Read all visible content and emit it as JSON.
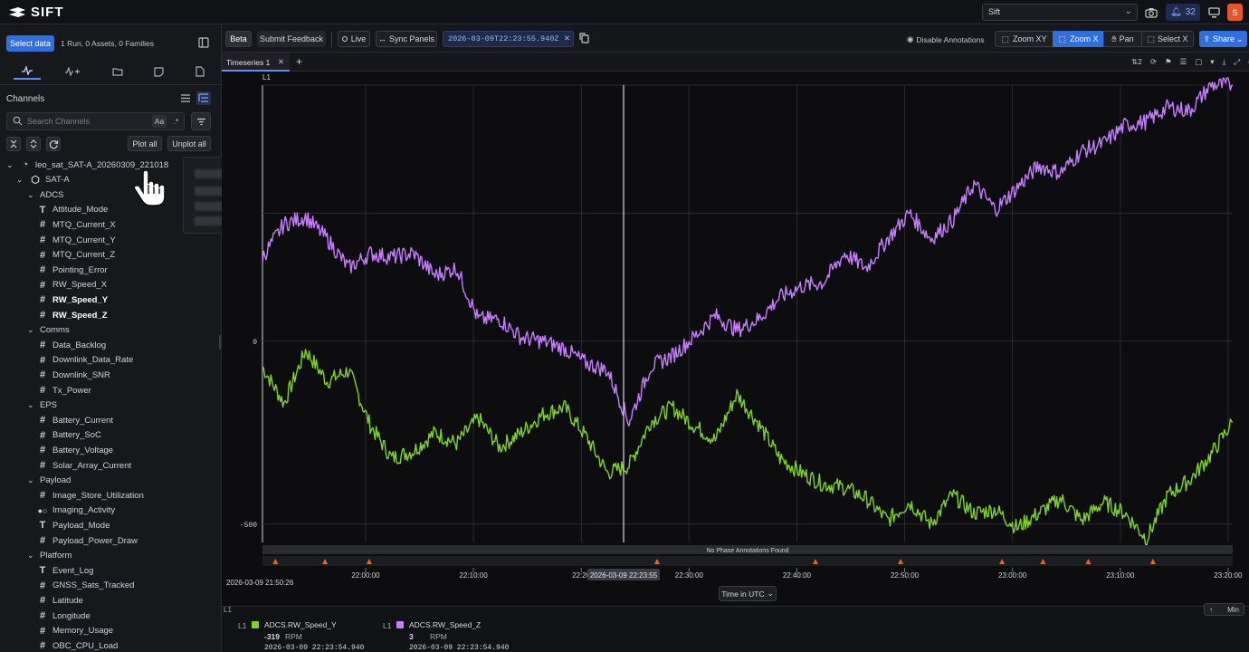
{
  "app": {
    "logo_text": "SIFT",
    "org": "Sift",
    "notifications": "32",
    "avatar": "S"
  },
  "sidebar": {
    "select_data": "Select data",
    "selection_summary": "1 Run, 0 Assets, 0 Families",
    "channels_title": "Channels",
    "search_placeholder": "Search Channels",
    "case_toggle": "Aa",
    "regex_toggle": ".*",
    "plot_all": "Plot all",
    "unplot_all": "Unplot all",
    "run_name": "leo_sat_SAT-A_20260309_221018",
    "asset_name": "SAT-A",
    "groups": [
      {
        "name": "ADCS",
        "channels": [
          {
            "name": "Attitude_Mode",
            "type": "text"
          },
          {
            "name": "MTQ_Current_X",
            "type": "number"
          },
          {
            "name": "MTQ_Current_Y",
            "type": "number"
          },
          {
            "name": "MTQ_Current_Z",
            "type": "number"
          },
          {
            "name": "Pointing_Error",
            "type": "number"
          },
          {
            "name": "RW_Speed_X",
            "type": "number"
          },
          {
            "name": "RW_Speed_Y",
            "type": "number",
            "plotted": true
          },
          {
            "name": "RW_Speed_Z",
            "type": "number",
            "plotted": true
          }
        ]
      },
      {
        "name": "Comms",
        "channels": [
          {
            "name": "Data_Backlog",
            "type": "number"
          },
          {
            "name": "Downlink_Data_Rate",
            "type": "number"
          },
          {
            "name": "Downlink_SNR",
            "type": "number"
          },
          {
            "name": "Tx_Power",
            "type": "number"
          }
        ]
      },
      {
        "name": "EPS",
        "channels": [
          {
            "name": "Battery_Current",
            "type": "number"
          },
          {
            "name": "Battery_SoC",
            "type": "number"
          },
          {
            "name": "Battery_Voltage",
            "type": "number"
          },
          {
            "name": "Solar_Array_Current",
            "type": "number"
          }
        ]
      },
      {
        "name": "Payload",
        "channels": [
          {
            "name": "Image_Store_Utilization",
            "type": "number"
          },
          {
            "name": "Imaging_Activity",
            "type": "bool"
          },
          {
            "name": "Payload_Mode",
            "type": "text"
          },
          {
            "name": "Payload_Power_Draw",
            "type": "number"
          }
        ]
      },
      {
        "name": "Platform",
        "channels": [
          {
            "name": "Event_Log",
            "type": "text"
          },
          {
            "name": "GNSS_Sats_Tracked",
            "type": "number"
          },
          {
            "name": "Latitude",
            "type": "number"
          },
          {
            "name": "Longitude",
            "type": "number"
          },
          {
            "name": "Memory_Usage",
            "type": "number"
          },
          {
            "name": "OBC_CPU_Load",
            "type": "number"
          }
        ]
      }
    ]
  },
  "toolbar": {
    "beta": "Beta",
    "feedback": "Submit Feedback",
    "live": "Live",
    "sync": "Sync Panels",
    "timestamp": "2026-03-09T22:23:55.940Z",
    "disable_annotations": "Disable Annotations",
    "zoom_xy": "Zoom XY",
    "zoom_x": "Zoom X",
    "pan": "Pan",
    "select_x": "Select X",
    "share": "Share"
  },
  "panel": {
    "tab": "Timeseries 1",
    "add": "+",
    "layers_count": "2"
  },
  "chart_data": {
    "type": "line",
    "axis_label": "L1",
    "y_ticks": [
      0,
      -500
    ],
    "ylim": [
      -550,
      700
    ],
    "x_ticks": [
      "22:00:00",
      "22:10:00",
      "22:20",
      "22:30:00",
      "22:40:00",
      "22:50:00",
      "23:00:00",
      "23:10:00",
      "23:20:00"
    ],
    "x_start_label": "2026-03-09 21:50:26",
    "cursor_label": "2026-03-09 22:23:55",
    "x_axis_title": "Time in UTC",
    "annotations_note": "No Phase Annotations Found",
    "series": [
      {
        "name": "ADCS.RW_Speed_Y",
        "color": "#7fd321",
        "x_min": [
          0,
          2,
          4,
          6,
          8,
          10,
          12,
          14,
          16,
          18,
          20,
          22,
          24,
          26,
          28,
          30,
          32,
          34,
          36,
          38,
          40,
          42,
          44,
          46,
          48,
          50,
          52,
          54,
          56,
          58,
          60,
          62,
          64,
          66,
          68,
          70,
          72,
          74,
          76,
          78,
          80,
          82,
          84,
          86,
          88,
          90
        ],
        "values": [
          -70,
          -170,
          -25,
          -110,
          -80,
          -230,
          -320,
          -300,
          -250,
          -280,
          -210,
          -290,
          -250,
          -200,
          -180,
          -260,
          -360,
          -340,
          -220,
          -180,
          -230,
          -270,
          -145,
          -225,
          -320,
          -360,
          -390,
          -400,
          -430,
          -490,
          -440,
          -500,
          -420,
          -470,
          -460,
          -510,
          -470,
          -430,
          -490,
          -440,
          -470,
          -540,
          -420,
          -380,
          -310,
          -220
        ]
      },
      {
        "name": "ADCS.RW_Speed_Z",
        "color": "#c77dff",
        "x_min": [
          0,
          2,
          4,
          6,
          8,
          10,
          12,
          14,
          16,
          18,
          20,
          22,
          24,
          26,
          28,
          30,
          32,
          34,
          36,
          38,
          40,
          42,
          44,
          46,
          48,
          50,
          52,
          54,
          56,
          58,
          60,
          62,
          64,
          66,
          68,
          70,
          72,
          74,
          76,
          78,
          80,
          82,
          84,
          86,
          88,
          90
        ],
        "values": [
          230,
          320,
          340,
          280,
          200,
          240,
          230,
          240,
          180,
          200,
          60,
          60,
          10,
          0,
          -20,
          -60,
          -80,
          -220,
          -70,
          -40,
          10,
          70,
          30,
          60,
          120,
          150,
          160,
          240,
          200,
          280,
          350,
          280,
          330,
          430,
          360,
          420,
          480,
          460,
          520,
          540,
          590,
          600,
          640,
          630,
          700,
          700
        ]
      }
    ],
    "grid": true
  },
  "legend": {
    "items": [
      {
        "axis": "L1",
        "name": "ADCS.RW_Speed_Y",
        "color": "#7fd321",
        "value": "-319",
        "unit": "RPM",
        "time": "2026-03-09 22:23:54.940"
      },
      {
        "axis": "L1",
        "name": "ADCS.RW_Speed_Z",
        "color": "#c77dff",
        "value": "3",
        "unit": "RPM",
        "time": "2026-03-09 22:23:54.940"
      }
    ],
    "label": "L1",
    "min_button": "Min"
  }
}
